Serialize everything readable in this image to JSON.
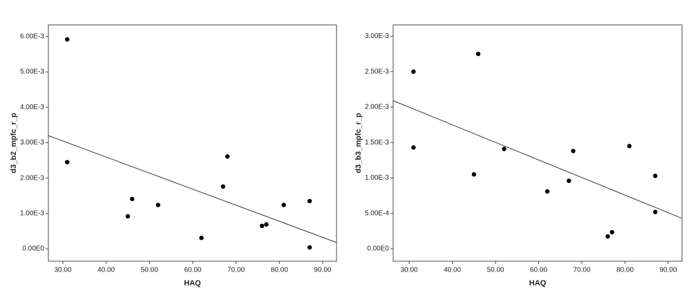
{
  "chart_data": [
    {
      "type": "scatter",
      "x_label": "HAQ",
      "y_label": "d3_b2_mpfc_r_p",
      "x": [
        31,
        31,
        45,
        46,
        52,
        62,
        67,
        68,
        76,
        77,
        81,
        87,
        87
      ],
      "values": [
        0.00592,
        0.00245,
        0.00092,
        0.00141,
        0.00124,
        0.00031,
        0.00176,
        0.00261,
        0.00065,
        0.00069,
        0.00124,
        0.00135,
        4e-05
      ],
      "color": "#000000",
      "fit_line": {
        "x": [
          26.65,
          93.2
        ],
        "y": [
          0.0032,
          0.00018
        ]
      },
      "xlim": [
        26.65,
        93.2
      ],
      "ylim": [
        -0.00035,
        0.00633
      ],
      "xticks": [
        {
          "value": 30,
          "label": "30.00"
        },
        {
          "value": 40,
          "label": "40.00"
        },
        {
          "value": 50,
          "label": "50.00"
        },
        {
          "value": 60,
          "label": "60.00"
        },
        {
          "value": 70,
          "label": "70.00"
        },
        {
          "value": 80,
          "label": "80.00"
        },
        {
          "value": 90,
          "label": "90.00"
        }
      ],
      "yticks": [
        {
          "value": 0,
          "label": "0.00E0"
        },
        {
          "value": 0.001,
          "label": "1.00E-3"
        },
        {
          "value": 0.002,
          "label": "2.00E-3"
        },
        {
          "value": 0.003,
          "label": "3.00E-3"
        },
        {
          "value": 0.004,
          "label": "4.00E-3"
        },
        {
          "value": 0.005,
          "label": "5.00E-3"
        },
        {
          "value": 0.006,
          "label": "6.00E-3"
        }
      ]
    },
    {
      "type": "scatter",
      "x_label": "HAQ",
      "y_label": "d3_b3_mpfc_r_p",
      "x": [
        31,
        31,
        46,
        45,
        52,
        62,
        67,
        68,
        76,
        77,
        81,
        87,
        87
      ],
      "values": [
        0.0025,
        0.00143,
        0.00275,
        0.00105,
        0.00141,
        0.00081,
        0.00096,
        0.00138,
        0.000175,
        0.000234,
        0.00145,
        0.00052,
        0.00103
      ],
      "color": "#000000",
      "fit_line": {
        "x": [
          26.3,
          93.2
        ],
        "y": [
          0.00209,
          0.00043
        ]
      },
      "xlim": [
        26.3,
        93.2
      ],
      "ylim": [
        -0.000175,
        0.00316
      ],
      "xticks": [
        {
          "value": 30,
          "label": "30.00"
        },
        {
          "value": 40,
          "label": "40.00"
        },
        {
          "value": 50,
          "label": "50.00"
        },
        {
          "value": 60,
          "label": "60.00"
        },
        {
          "value": 70,
          "label": "70.00"
        },
        {
          "value": 80,
          "label": "80.00"
        },
        {
          "value": 90,
          "label": "90.00"
        }
      ],
      "yticks": [
        {
          "value": 0,
          "label": "0.00E0"
        },
        {
          "value": 0.0005,
          "label": "5.00E-4"
        },
        {
          "value": 0.001,
          "label": "1.00E-3"
        },
        {
          "value": 0.0015,
          "label": "1.50E-3"
        },
        {
          "value": 0.002,
          "label": "2.00E-3"
        },
        {
          "value": 0.0025,
          "label": "2.50E-3"
        },
        {
          "value": 0.003,
          "label": "3.00E-3"
        }
      ]
    }
  ]
}
